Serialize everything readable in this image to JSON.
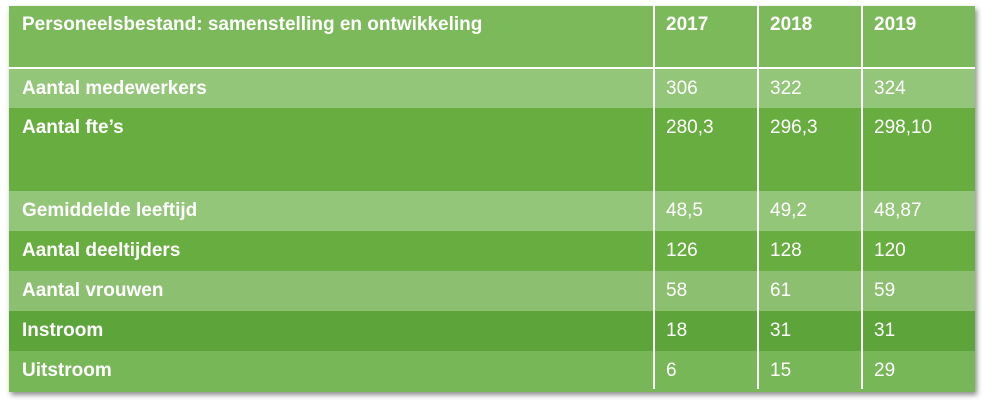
{
  "table": {
    "title": "Personeelsbestand: samenstelling en ontwikkeling",
    "years": [
      "2017",
      "2018",
      "2019"
    ],
    "rows": [
      {
        "label": "Aantal medewerkers",
        "values": [
          "306",
          "322",
          "324"
        ]
      },
      {
        "label": "Aantal fte’s",
        "values": [
          "280,3",
          "296,3",
          "298,10"
        ]
      },
      {
        "label": "Gemiddelde leeftijd",
        "values": [
          "48,5",
          "49,2",
          "48,87"
        ]
      },
      {
        "label": "Aantal deeltijders",
        "values": [
          "126",
          "128",
          "120"
        ]
      },
      {
        "label": "Aantal vrouwen",
        "values": [
          "58",
          "61",
          "59"
        ]
      },
      {
        "label": "Instroom",
        "values": [
          "18",
          "31",
          "31"
        ]
      },
      {
        "label": "Uitstroom",
        "values": [
          "6",
          "15",
          "29"
        ]
      }
    ]
  },
  "colors": {
    "header": "#7bb95a",
    "light_row": "#94c67a",
    "dark_row": "#68ad3f",
    "text": "#ffffff"
  }
}
